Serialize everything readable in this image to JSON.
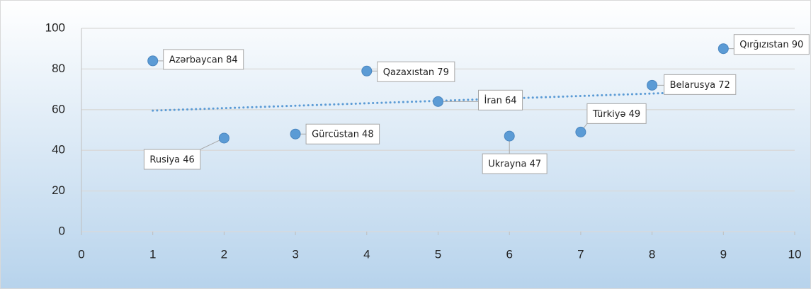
{
  "chart_data": {
    "type": "scatter",
    "x": [
      1,
      2,
      3,
      4,
      5,
      6,
      7,
      8,
      9
    ],
    "values": [
      84,
      46,
      48,
      79,
      64,
      47,
      49,
      72,
      90
    ],
    "value_labels": [
      "Azərbaycan  84",
      "Rusiya  46",
      "Gürcüstan 48",
      "Qazaxıstan  79",
      "İran  64",
      "Ukrayna  47",
      "Türkiyə  49",
      "Belarusya  72",
      "Qırğızıstan  90"
    ],
    "color": "#5b9bd5",
    "trendline": "linear",
    "xlim": [
      0,
      10
    ],
    "xticks": [
      0,
      1,
      2,
      3,
      4,
      5,
      6,
      7,
      8,
      9,
      10
    ],
    "ylim": [
      0,
      100
    ],
    "yticks": [
      0,
      20,
      40,
      60,
      80,
      100
    ],
    "grid": true
  }
}
